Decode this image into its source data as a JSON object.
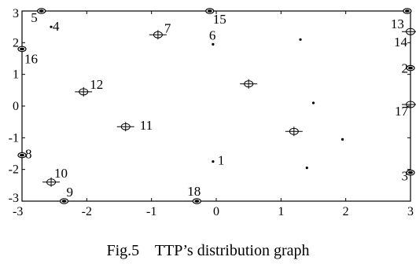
{
  "caption": "Fig.5    TTP’s distribution graph",
  "chart_data": {
    "type": "scatter",
    "title": "",
    "xlabel": "",
    "ylabel": "",
    "xlim": [
      -3,
      3
    ],
    "ylim": [
      -3,
      3
    ],
    "x_ticks": [
      "-3",
      "-2",
      "-1",
      "0",
      "1",
      "2",
      "3"
    ],
    "y_ticks": [
      "-3",
      "-2",
      "-1",
      "0",
      "1",
      "2",
      "3"
    ],
    "grid": false,
    "labeled_points": [
      {
        "label": "1",
        "x": -0.05,
        "y": -1.75,
        "marker": "dot"
      },
      {
        "label": "2",
        "x": 3.0,
        "y": 1.2,
        "marker": "half-circle"
      },
      {
        "label": "3",
        "x": 3.0,
        "y": -2.1,
        "marker": "half-circle"
      },
      {
        "label": "4",
        "x": -2.55,
        "y": 2.5,
        "marker": "dot"
      },
      {
        "label": "5",
        "x": -2.7,
        "y": 3.0,
        "marker": "half-circle"
      },
      {
        "label": "6",
        "x": -0.05,
        "y": 1.95,
        "marker": "dot"
      },
      {
        "label": "7",
        "x": -0.9,
        "y": 2.25,
        "marker": "target"
      },
      {
        "label": "8",
        "x": -3.0,
        "y": -1.55,
        "marker": "half-circle"
      },
      {
        "label": "9",
        "x": -2.35,
        "y": -3.0,
        "marker": "half-circle"
      },
      {
        "label": "10",
        "x": -2.55,
        "y": -2.4,
        "marker": "target"
      },
      {
        "label": "11",
        "x": -1.4,
        "y": -0.65,
        "marker": "target"
      },
      {
        "label": "12",
        "x": -2.05,
        "y": 0.45,
        "marker": "target"
      },
      {
        "label": "13",
        "x": 2.95,
        "y": 3.0,
        "marker": "half-circle"
      },
      {
        "label": "14",
        "x": 3.0,
        "y": 2.35,
        "marker": "target"
      },
      {
        "label": "15",
        "x": -0.1,
        "y": 3.0,
        "marker": "half-circle"
      },
      {
        "label": "16",
        "x": -3.0,
        "y": 1.8,
        "marker": "half-circle"
      },
      {
        "label": "17",
        "x": 3.0,
        "y": 0.05,
        "marker": "target"
      },
      {
        "label": "18",
        "x": -0.3,
        "y": -3.0,
        "marker": "half-circle"
      }
    ],
    "unlabeled_points": [
      {
        "x": 0.5,
        "y": 0.7,
        "marker": "target"
      },
      {
        "x": 1.2,
        "y": -0.8,
        "marker": "target"
      },
      {
        "x": 1.3,
        "y": 2.1,
        "marker": "dot"
      },
      {
        "x": 1.5,
        "y": 0.1,
        "marker": "dot"
      },
      {
        "x": 1.95,
        "y": -1.05,
        "marker": "dot"
      },
      {
        "x": 1.4,
        "y": -1.95,
        "marker": "dot"
      }
    ]
  }
}
